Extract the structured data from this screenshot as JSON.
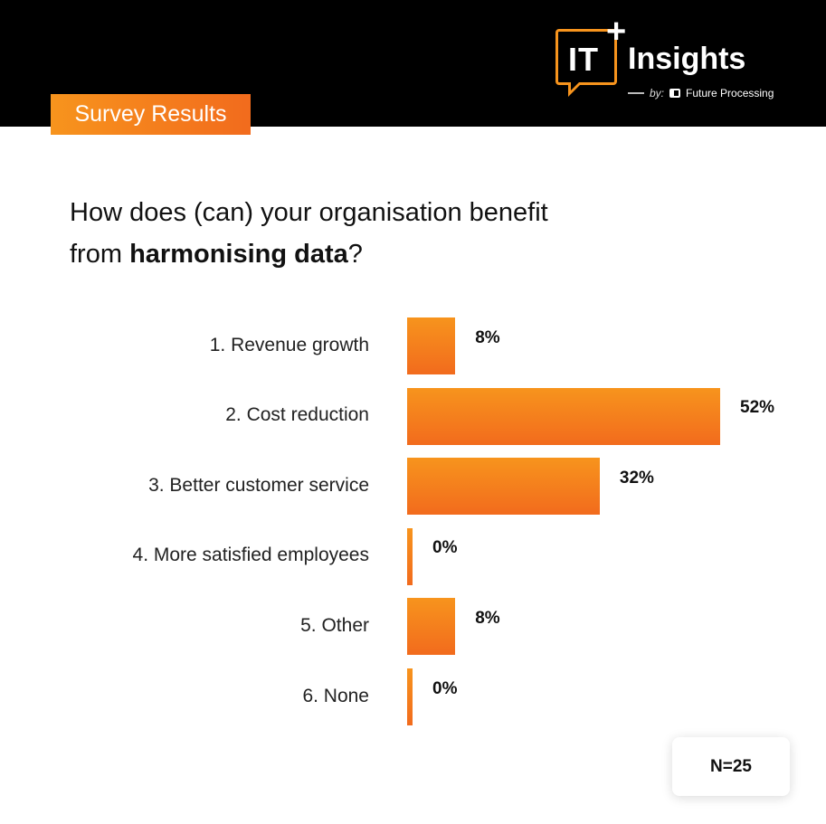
{
  "header": {
    "badge_label": "Survey Results",
    "logo": {
      "it_text": "IT",
      "plus_text": "+",
      "insights_text": "Insights",
      "by_text": "by:",
      "company_text": "Future Processing"
    }
  },
  "question": {
    "line1": "How does (can) your organisation benefit",
    "line2_prefix": "from ",
    "line2_bold": "harmonising data",
    "line2_suffix": "?"
  },
  "chart_data": {
    "type": "bar",
    "orientation": "horizontal",
    "categories": [
      "1. Revenue growth",
      "2. Cost reduction",
      "3. Better customer service",
      "4. More satisfied employees",
      "5. Other",
      "6. None"
    ],
    "values": [
      8,
      52,
      32,
      0,
      8,
      0
    ],
    "value_labels": [
      "8%",
      "52%",
      "32%",
      "0%",
      "8%",
      "0%"
    ],
    "xlim": [
      0,
      52
    ],
    "grid": false,
    "bar_color": "#f26b1d"
  },
  "sample_size": "N=25",
  "colors": {
    "accent": "#f7941d",
    "accent_dark": "#f26b1d",
    "header_bg": "#000000"
  }
}
